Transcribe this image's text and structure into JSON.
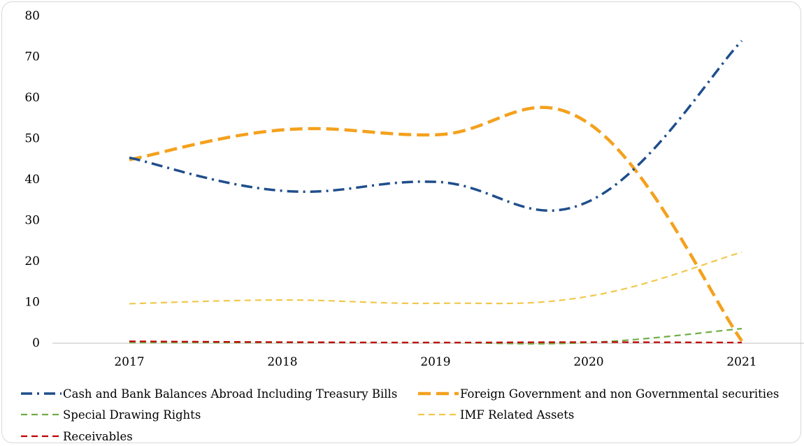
{
  "title": "",
  "chart_data": {
    "type": "line",
    "x": [
      "2017",
      "2018",
      "2019",
      "2020",
      "2021"
    ],
    "ylim": [
      0,
      80
    ],
    "yticks": [
      0,
      10,
      20,
      30,
      40,
      50,
      60,
      70,
      80
    ],
    "grid": false,
    "legend_position": "bottom",
    "series": [
      {
        "name": "Cash and Bank Balances Abroad Including Treasury Bills",
        "values": [
          45.2,
          37.1,
          39.3,
          34.5,
          73.8
        ],
        "color": "#1f4e8c",
        "dash": "long-dash-dot"
      },
      {
        "name": "Foreign Government and non Governmental securities",
        "values": [
          44.7,
          52.0,
          50.8,
          53.6,
          0.4
        ],
        "color": "#f4a11d",
        "dash": "long-dash"
      },
      {
        "name": "Special Drawing Rights",
        "values": [
          0.0,
          0.0,
          0.0,
          0.0,
          3.4
        ],
        "color": "#70ad47",
        "dash": "dash"
      },
      {
        "name": "IMF Related Assets",
        "values": [
          9.5,
          10.4,
          9.6,
          11.3,
          22.1
        ],
        "color": "#f1c84b",
        "dash": "dash"
      },
      {
        "name": "Receivables",
        "values": [
          0.3,
          0.1,
          0.0,
          0.1,
          0.0
        ],
        "color": "#c00000",
        "dash": "dash"
      }
    ]
  }
}
